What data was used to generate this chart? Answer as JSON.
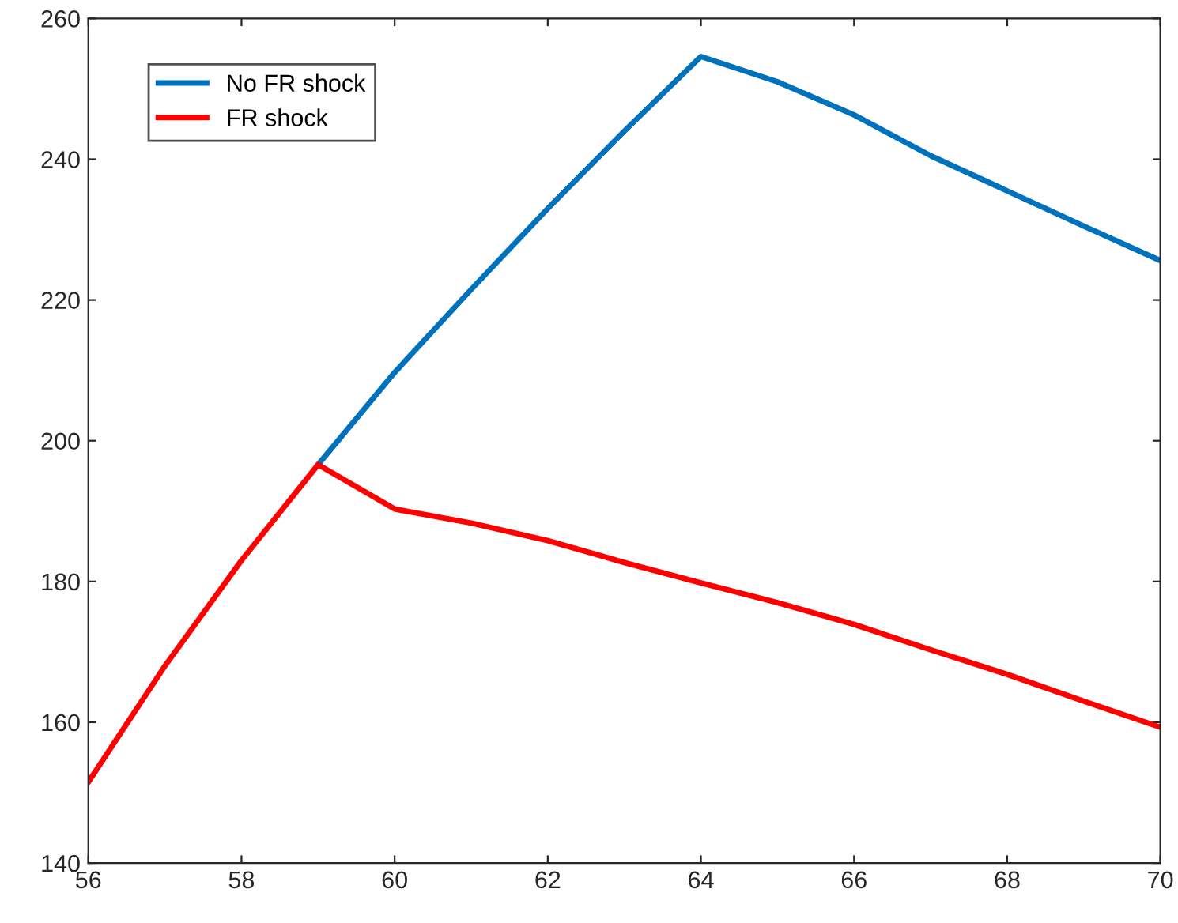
{
  "chart_data": {
    "type": "line",
    "x": [
      56,
      57,
      58,
      59,
      60,
      61,
      62,
      63,
      64,
      65,
      66,
      67,
      68,
      69,
      70
    ],
    "series": [
      {
        "name": "No FR shock",
        "color": "#0072bd",
        "values": [
          null,
          null,
          null,
          196.6,
          209.7,
          221.5,
          233,
          244,
          254.6,
          251,
          246.3,
          240.5,
          235.5,
          230.5,
          225.6
        ]
      },
      {
        "name": "FR shock",
        "color": "#ff0000",
        "values": [
          151.5,
          168,
          183,
          196.6,
          190.3,
          188.3,
          185.8,
          182.7,
          179.8,
          177,
          173.9,
          170.3,
          166.8,
          163,
          159.3
        ]
      }
    ],
    "xlim": [
      56,
      70
    ],
    "xticks": [
      56,
      58,
      60,
      62,
      64,
      66,
      68,
      70
    ],
    "ylim": [
      140,
      260
    ],
    "yticks": [
      140,
      160,
      180,
      200,
      220,
      240,
      260
    ],
    "grid": false,
    "legend": "top left",
    "marker": "none",
    "line_style": "solid"
  }
}
